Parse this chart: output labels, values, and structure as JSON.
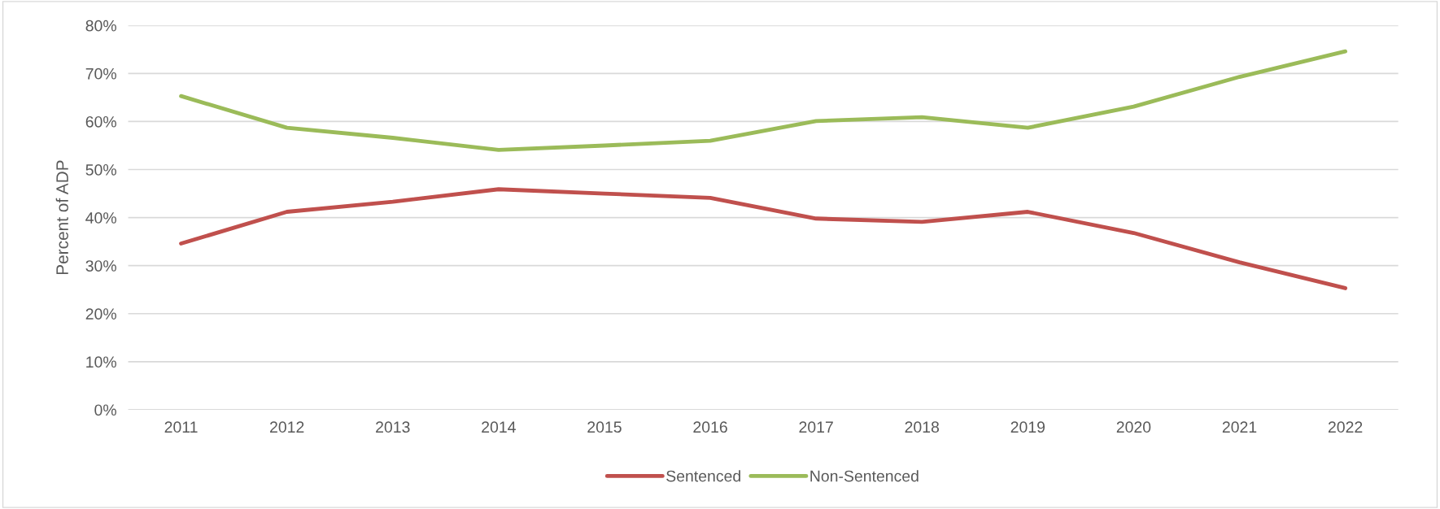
{
  "chart_data": {
    "type": "line",
    "ylabel": "Percent of ADP",
    "categories": [
      "2011",
      "2012",
      "2013",
      "2014",
      "2015",
      "2016",
      "2017",
      "2018",
      "2019",
      "2020",
      "2021",
      "2022"
    ],
    "series": [
      {
        "name": "Sentenced",
        "color": "#c0504d",
        "values": [
          34.6,
          41.2,
          43.3,
          45.9,
          45.0,
          44.1,
          39.8,
          39.1,
          41.2,
          36.8,
          30.7,
          25.3
        ]
      },
      {
        "name": "Non-Sentenced",
        "color": "#9bbb59",
        "values": [
          65.3,
          58.7,
          56.6,
          54.1,
          55.0,
          56.0,
          60.1,
          60.9,
          58.7,
          63.1,
          69.3,
          74.6
        ]
      }
    ],
    "ylim": [
      0,
      80
    ],
    "yticks": [
      {
        "value": 0,
        "label": "0%"
      },
      {
        "value": 10,
        "label": "10%"
      },
      {
        "value": 20,
        "label": "20%"
      },
      {
        "value": 30,
        "label": "30%"
      },
      {
        "value": 40,
        "label": "40%"
      },
      {
        "value": 50,
        "label": "50%"
      },
      {
        "value": 60,
        "label": "60%"
      },
      {
        "value": 70,
        "label": "70%"
      },
      {
        "value": 80,
        "label": "80%"
      }
    ],
    "grid": "y",
    "legend": "bottom",
    "marker": "none",
    "line_style": "solid"
  }
}
